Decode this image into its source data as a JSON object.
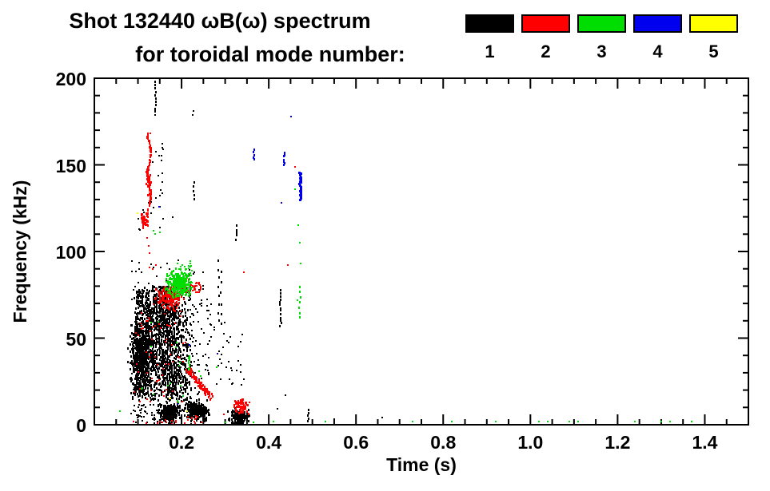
{
  "page": {
    "title_line1": "Shot 132440 ωB(ω) spectrum",
    "title_line2": "for toroidal mode number:"
  },
  "chart_data": {
    "type": "scatter",
    "title": "Shot 132440 ωB(ω) spectrum for toroidal mode number 1-5",
    "xlabel": "Time (s)",
    "ylabel": "Frequency (kHz)",
    "xlim": [
      0,
      1.5
    ],
    "ylim": [
      0,
      200
    ],
    "grid": false,
    "x_ticks": {
      "values": [
        0.2,
        0.4,
        0.6,
        0.8,
        1.0,
        1.2,
        1.4
      ],
      "labels": [
        "0.2",
        "0.4",
        "0.6",
        "0.8",
        "1.0",
        "1.2",
        "1.4"
      ],
      "minor_step": 0.05
    },
    "y_ticks": {
      "values": [
        0,
        50,
        100,
        150,
        200
      ],
      "labels": [
        "0",
        "50",
        "100",
        "150",
        "200"
      ],
      "minor_step": 10
    },
    "legend": {
      "position": "top-right",
      "modes": [
        {
          "label": "1",
          "color": "#000000"
        },
        {
          "label": "2",
          "color": "#ff0000"
        },
        {
          "label": "3",
          "color": "#00dd00"
        },
        {
          "label": "4",
          "color": "#0000ee"
        },
        {
          "label": "5",
          "color": "#ffff00"
        }
      ]
    },
    "clusters": [
      {
        "mode": 1,
        "type": "gauss",
        "tc": 0.107,
        "fc": 41,
        "st": 0.012,
        "sf": 7,
        "n": 420,
        "w": 2,
        "h": 3
      },
      {
        "mode": 1,
        "type": "gauss",
        "tc": 0.105,
        "fc": 25,
        "st": 0.01,
        "sf": 5,
        "n": 140,
        "w": 2,
        "h": 3
      },
      {
        "mode": 1,
        "type": "scatter",
        "t": [
          0.09,
          0.215
        ],
        "f": [
          14,
          80
        ],
        "n": 650,
        "w": 2,
        "h": 3
      },
      {
        "mode": 1,
        "type": "scatter",
        "t": [
          0.095,
          0.175
        ],
        "f": [
          56,
          78
        ],
        "n": 170,
        "w": 2,
        "h": 3
      },
      {
        "mode": 1,
        "type": "vlines",
        "lines": [
          [
            0.118,
            22,
            70,
            0.5
          ],
          [
            0.124,
            28,
            76,
            0.55
          ],
          [
            0.131,
            18,
            68,
            0.5
          ],
          [
            0.136,
            32,
            79,
            0.6
          ],
          [
            0.143,
            20,
            74,
            0.55
          ],
          [
            0.149,
            26,
            69,
            0.6
          ],
          [
            0.154,
            16,
            78,
            0.7
          ],
          [
            0.158,
            20,
            80,
            0.75
          ],
          [
            0.163,
            18,
            76,
            0.7
          ],
          [
            0.168,
            15,
            73,
            0.75
          ],
          [
            0.173,
            20,
            78,
            0.7
          ],
          [
            0.178,
            16,
            75,
            0.75
          ],
          [
            0.183,
            18,
            80,
            0.7
          ],
          [
            0.188,
            15,
            76,
            0.65
          ],
          [
            0.193,
            24,
            70,
            0.5
          ],
          [
            0.198,
            14,
            64,
            0.45
          ],
          [
            0.204,
            16,
            55,
            0.4
          ],
          [
            0.21,
            18,
            50,
            0.35
          ],
          [
            0.22,
            8,
            93,
            0.5
          ]
        ]
      },
      {
        "mode": 1,
        "type": "scatter",
        "t": [
          0.085,
          0.25
        ],
        "f": [
          6,
          95
        ],
        "n": 170,
        "w": 2,
        "h": 2
      },
      {
        "mode": 1,
        "type": "scatter",
        "t": [
          0.125,
          0.162
        ],
        "f": [
          112,
          165
        ],
        "n": 16,
        "w": 2,
        "h": 2
      },
      {
        "mode": 1,
        "type": "scatter",
        "t": [
          0.1,
          0.125
        ],
        "f": [
          112,
          125
        ],
        "n": 8,
        "w": 2,
        "h": 2
      },
      {
        "mode": 1,
        "type": "scatter",
        "t": [
          0.215,
          0.27
        ],
        "f": [
          28,
          75
        ],
        "n": 50,
        "w": 2,
        "h": 2
      },
      {
        "mode": 1,
        "type": "scatter",
        "t": [
          0.26,
          0.32
        ],
        "f": [
          20,
          60
        ],
        "n": 20,
        "w": 2,
        "h": 2
      },
      {
        "mode": 1,
        "type": "scatter",
        "t": [
          0.305,
          0.345
        ],
        "f": [
          22,
          38
        ],
        "n": 10,
        "w": 2,
        "h": 2
      },
      {
        "mode": 1,
        "type": "scatter",
        "t": [
          0.09,
          0.155
        ],
        "f": [
          1,
          12
        ],
        "n": 40,
        "w": 2,
        "h": 2
      },
      {
        "mode": 1,
        "type": "gauss",
        "tc": 0.172,
        "fc": 7.0,
        "st": 0.011,
        "sf": 2.6,
        "n": 240,
        "w": 2,
        "h": 3
      },
      {
        "mode": 1,
        "type": "gauss",
        "tc": 0.236,
        "fc": 8.0,
        "st": 0.013,
        "sf": 2.8,
        "n": 280,
        "w": 2,
        "h": 3
      },
      {
        "mode": 1,
        "type": "gauss",
        "tc": 0.331,
        "fc": 4.5,
        "st": 0.01,
        "sf": 2.0,
        "n": 170,
        "w": 2,
        "h": 3
      },
      {
        "mode": 1,
        "type": "vline",
        "t": 0.1405,
        "f": [
          181,
          198
        ],
        "n": 10
      },
      {
        "mode": 1,
        "type": "vline",
        "t": 0.228,
        "f": [
          130,
          140
        ],
        "n": 5
      },
      {
        "mode": 1,
        "type": "vline",
        "t": 0.327,
        "f": [
          107,
          115
        ],
        "n": 5
      },
      {
        "mode": 1,
        "type": "vline",
        "t": 0.285,
        "f": [
          60,
          95
        ],
        "n": 8
      },
      {
        "mode": 1,
        "type": "vline",
        "t": 0.292,
        "f": [
          58,
          88
        ],
        "n": 6
      },
      {
        "mode": 1,
        "type": "vline",
        "t": 0.427,
        "f": [
          57,
          78
        ],
        "n": 13
      },
      {
        "mode": 1,
        "type": "vline",
        "t": 0.49,
        "f": [
          2,
          9
        ],
        "n": 5
      },
      {
        "mode": 1,
        "type": "dots",
        "pts": [
          [
            0.139,
            179
          ],
          [
            0.155,
            160
          ],
          [
            0.156,
            162
          ],
          [
            0.157,
            159
          ],
          [
            0.225,
            179
          ],
          [
            0.227,
            181
          ],
          [
            0.33,
            45
          ],
          [
            0.335,
            48
          ],
          [
            0.34,
            52
          ],
          [
            0.42,
            9
          ],
          [
            0.438,
            17
          ],
          [
            0.55,
            3
          ],
          [
            0.66,
            4
          ],
          [
            0.147,
            144
          ],
          [
            0.156,
            140
          ],
          [
            0.18,
            120
          ],
          [
            0.125,
            128
          ]
        ]
      },
      {
        "mode": 2,
        "type": "vwiggle",
        "t": 0.1255,
        "f": [
          116,
          168
        ],
        "amp": 0.004,
        "n": 90,
        "w": 2,
        "h": 3
      },
      {
        "mode": 2,
        "type": "gauss",
        "tc": 0.124,
        "fc": 141,
        "st": 0.0025,
        "sf": 4.0,
        "n": 30,
        "w": 2,
        "h": 3
      },
      {
        "mode": 2,
        "type": "gauss",
        "tc": 0.115,
        "fc": 118,
        "st": 0.004,
        "sf": 2.0,
        "n": 40,
        "w": 2,
        "h": 3
      },
      {
        "mode": 2,
        "type": "gauss",
        "tc": 0.17,
        "fc": 73.5,
        "st": 0.013,
        "sf": 3.0,
        "n": 150,
        "w": 2,
        "h": 3
      },
      {
        "mode": 2,
        "type": "scatter",
        "t": [
          0.19,
          0.235
        ],
        "f": [
          76,
          84
        ],
        "n": 30,
        "w": 2,
        "h": 2
      },
      {
        "mode": 2,
        "type": "ring",
        "tc": 0.237,
        "fc": 79,
        "rt": 0.007,
        "rf": 3,
        "n": 22
      },
      {
        "mode": 2,
        "type": "scatter",
        "t": [
          0.09,
          0.21
        ],
        "f": [
          12,
          70
        ],
        "n": 65,
        "w": 2,
        "h": 2
      },
      {
        "mode": 2,
        "type": "streak",
        "p0": [
          0.212,
          33
        ],
        "p1": [
          0.268,
          16
        ],
        "wf": 4,
        "n": 90,
        "w": 2,
        "h": 3
      },
      {
        "mode": 2,
        "type": "gauss",
        "tc": 0.338,
        "fc": 11,
        "st": 0.007,
        "sf": 1.8,
        "n": 70,
        "w": 2,
        "h": 3
      },
      {
        "mode": 2,
        "type": "scatter",
        "t": [
          0.205,
          0.245
        ],
        "f": [
          1,
          5
        ],
        "n": 12,
        "w": 2,
        "h": 2
      },
      {
        "mode": 2,
        "type": "scatter",
        "t": [
          0.148,
          0.2
        ],
        "f": [
          0.5,
          3
        ],
        "n": 8,
        "w": 2,
        "h": 2
      },
      {
        "mode": 2,
        "type": "dots",
        "pts": [
          [
            0.121,
            108
          ],
          [
            0.124,
            103
          ],
          [
            0.127,
            99
          ],
          [
            0.128,
            168
          ],
          [
            0.127,
            91
          ],
          [
            0.134,
            90
          ],
          [
            0.141,
            92
          ],
          [
            0.444,
            92
          ],
          [
            0.343,
            88
          ],
          [
            0.46,
            149
          ],
          [
            0.09,
            2
          ],
          [
            0.12,
            1
          ],
          [
            0.145,
            1
          ],
          [
            0.262,
            16
          ],
          [
            0.268,
            15
          ],
          [
            0.297,
            6
          ],
          [
            0.355,
            13
          ]
        ]
      },
      {
        "mode": 3,
        "type": "gauss",
        "tc": 0.193,
        "fc": 82,
        "st": 0.012,
        "sf": 3.5,
        "n": 200,
        "w": 2,
        "h": 3
      },
      {
        "mode": 3,
        "type": "scatter",
        "t": [
          0.165,
          0.225
        ],
        "f": [
          75,
          88
        ],
        "n": 60,
        "w": 2,
        "h": 2
      },
      {
        "mode": 3,
        "type": "scatter",
        "t": [
          0.188,
          0.225
        ],
        "f": [
          87,
          95
        ],
        "n": 16,
        "w": 2,
        "h": 2
      },
      {
        "mode": 3,
        "type": "vline",
        "t": 0.2165,
        "f": [
          32,
          40
        ],
        "n": 8
      },
      {
        "mode": 3,
        "type": "vline",
        "t": 0.471,
        "f": [
          62,
          80
        ],
        "n": 7
      },
      {
        "mode": 3,
        "type": "scatter",
        "t": [
          0.1,
          0.21
        ],
        "f": [
          15,
          60
        ],
        "n": 12,
        "w": 2,
        "h": 2
      },
      {
        "mode": 3,
        "type": "dots",
        "pts": [
          [
            0.195,
            34
          ],
          [
            0.197,
            36
          ],
          [
            0.24,
            31
          ],
          [
            0.243,
            28
          ],
          [
            0.28,
            33
          ],
          [
            0.19,
            14
          ],
          [
            0.192,
            13
          ],
          [
            0.471,
            105
          ],
          [
            0.468,
            115
          ],
          [
            0.474,
            93
          ],
          [
            0.46,
            136
          ],
          [
            0.465,
            72
          ],
          [
            0.135,
            112
          ],
          [
            0.15,
            111
          ],
          [
            0.14,
            110
          ]
        ]
      },
      {
        "mode": 3,
        "type": "dots",
        "pts": [
          [
            0.058,
            8
          ],
          [
            0.3,
            1.5
          ],
          [
            0.365,
            1.5
          ],
          [
            0.41,
            2
          ],
          [
            0.53,
            2
          ],
          [
            0.73,
            2
          ],
          [
            0.82,
            2
          ],
          [
            0.92,
            2
          ],
          [
            1.02,
            2
          ],
          [
            1.04,
            2
          ],
          [
            1.09,
            2
          ],
          [
            1.11,
            2
          ],
          [
            1.24,
            2
          ],
          [
            1.3,
            2
          ],
          [
            1.32,
            2
          ],
          [
            1.37,
            2
          ]
        ]
      },
      {
        "mode": 4,
        "type": "vline",
        "t": 0.472,
        "f": [
          130,
          146
        ],
        "n": 22,
        "w": 3
      },
      {
        "mode": 4,
        "type": "vline",
        "t": 0.4355,
        "f": [
          150,
          157
        ],
        "n": 7
      },
      {
        "mode": 4,
        "type": "vline",
        "t": 0.366,
        "f": [
          153,
          159
        ],
        "n": 5
      },
      {
        "mode": 4,
        "type": "dots",
        "pts": [
          [
            0.451,
            178
          ],
          [
            0.43,
            128
          ],
          [
            0.218,
            46
          ],
          [
            0.283,
            41
          ],
          [
            0.19,
            12
          ],
          [
            0.148,
            126
          ]
        ]
      },
      {
        "mode": 5,
        "type": "dots",
        "pts": [
          [
            0.099,
            122
          ],
          [
            0.174,
            15
          ],
          [
            0.213,
            8
          ]
        ]
      }
    ]
  }
}
